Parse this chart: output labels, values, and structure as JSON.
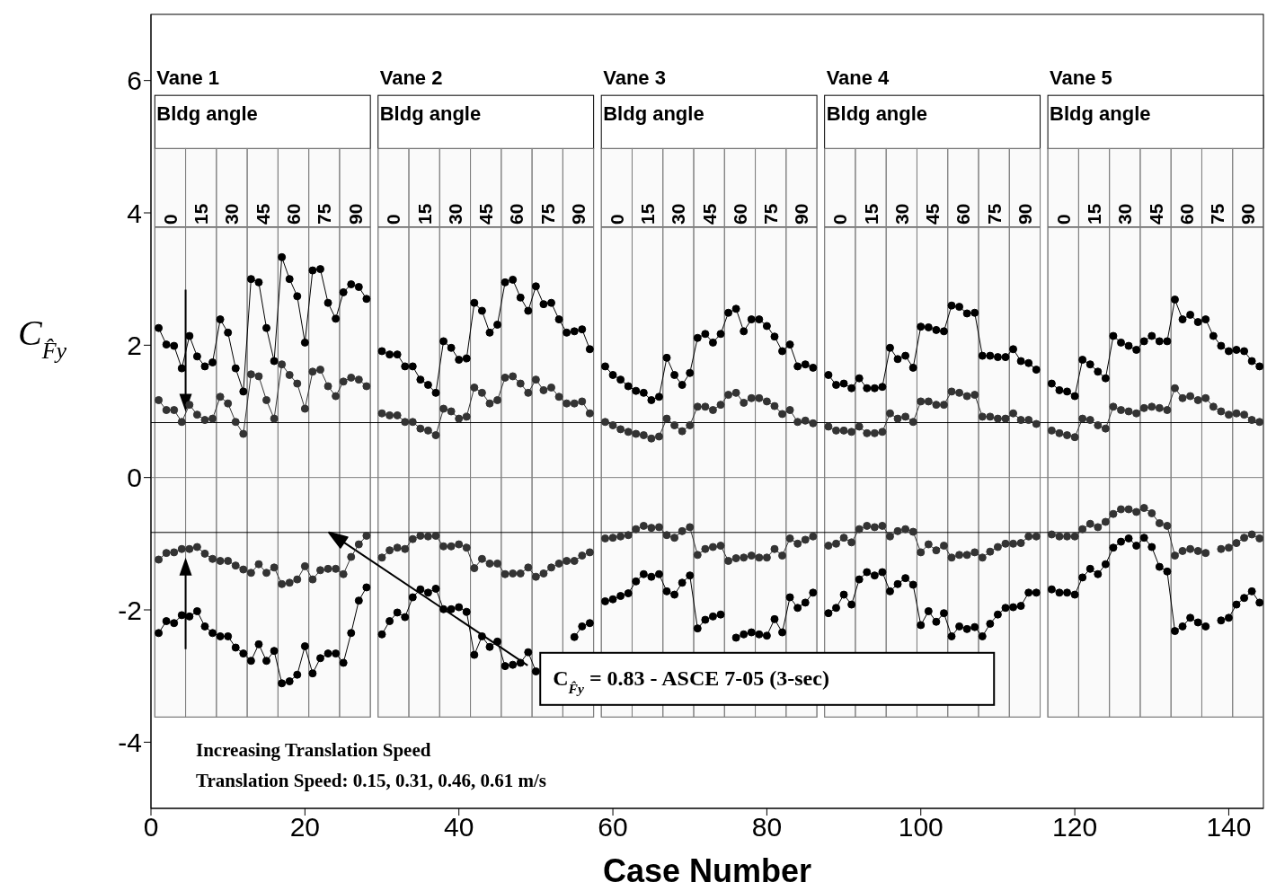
{
  "chart_data": {
    "type": "line",
    "xlabel": "Case Number",
    "ylabel": "C$_{F̂y}$",
    "x2label": "Bldg angle",
    "xlim": [
      0,
      144.5
    ],
    "xticks": [
      0,
      20,
      40,
      60,
      80,
      100,
      120,
      140
    ],
    "ylim": [
      -5,
      7
    ],
    "yticks": [
      -4,
      -2,
      0,
      2,
      4,
      6
    ],
    "bands": [
      {
        "axis": "x",
        "from": 0.5,
        "to": 28.5,
        "label": "Vane 1",
        "color": "#000000"
      },
      {
        "axis": "x",
        "from": 29.5,
        "to": 57.5,
        "label": "Vane 2",
        "color": "#000000"
      },
      {
        "axis": "x",
        "from": 58.5,
        "to": 86.5,
        "label": "Vane 3",
        "color": "#000000"
      },
      {
        "axis": "x",
        "from": 87.5,
        "to": 115.5,
        "label": "Vane 4",
        "color": "#000000"
      },
      {
        "axis": "x",
        "from": 116.5,
        "to": 144.5,
        "label": "Vane 5",
        "color": "#000000"
      },
      {
        "axis": "x",
        "from": 0.5,
        "to": 4.5,
        "label": "0",
        "color": "#808080"
      },
      {
        "axis": "x",
        "from": 4.5,
        "to": 8.5,
        "label": "15",
        "color": "#808080"
      },
      {
        "axis": "x",
        "from": 8.5,
        "to": 12.5,
        "label": "30",
        "color": "#808080"
      },
      {
        "axis": "x",
        "from": 12.5,
        "to": 16.5,
        "label": "45",
        "color": "#808080"
      },
      {
        "axis": "x",
        "from": 16.5,
        "to": 20.5,
        "label": "60",
        "color": "#808080"
      },
      {
        "axis": "x",
        "from": 20.5,
        "to": 24.5,
        "label": "75",
        "color": "#808080"
      },
      {
        "axis": "x",
        "from": 24.5,
        "to": 28.5,
        "label": "90",
        "color": "#808080"
      },
      {
        "axis": "x",
        "from": 29.5,
        "to": 33.5,
        "label": "0",
        "color": "#808080"
      },
      {
        "axis": "x",
        "from": 33.5,
        "to": 37.5,
        "label": "15",
        "color": "#808080"
      },
      {
        "axis": "x",
        "from": 37.5,
        "to": 41.5,
        "label": "30",
        "color": "#808080"
      },
      {
        "axis": "x",
        "from": 41.5,
        "to": 45.5,
        "label": "45",
        "color": "#808080"
      },
      {
        "axis": "x",
        "from": 45.5,
        "to": 49.5,
        "label": "60",
        "color": "#808080"
      },
      {
        "axis": "x",
        "from": 49.5,
        "to": 53.5,
        "label": "75",
        "color": "#808080"
      },
      {
        "axis": "x",
        "from": 53.5,
        "to": 57.5,
        "label": "90",
        "color": "#808080"
      },
      {
        "axis": "x",
        "from": 58.5,
        "to": 62.5,
        "label": "0",
        "color": "#808080"
      },
      {
        "axis": "x",
        "from": 62.5,
        "to": 66.5,
        "label": "15",
        "color": "#808080"
      },
      {
        "axis": "x",
        "from": 66.5,
        "to": 70.5,
        "label": "30",
        "color": "#808080"
      },
      {
        "axis": "x",
        "from": 70.5,
        "to": 74.5,
        "label": "45",
        "color": "#808080"
      },
      {
        "axis": "x",
        "from": 74.5,
        "to": 78.5,
        "label": "60",
        "color": "#808080"
      },
      {
        "axis": "x",
        "from": 78.5,
        "to": 82.5,
        "label": "75",
        "color": "#808080"
      },
      {
        "axis": "x",
        "from": 82.5,
        "to": 86.5,
        "label": "90",
        "color": "#808080"
      },
      {
        "axis": "x",
        "from": 87.5,
        "to": 91.5,
        "label": "0",
        "color": "#808080"
      },
      {
        "axis": "x",
        "from": 91.5,
        "to": 95.5,
        "label": "15",
        "color": "#808080"
      },
      {
        "axis": "x",
        "from": 95.5,
        "to": 99.5,
        "label": "30",
        "color": "#808080"
      },
      {
        "axis": "x",
        "from": 99.5,
        "to": 103.5,
        "label": "45",
        "color": "#808080"
      },
      {
        "axis": "x",
        "from": 103.5,
        "to": 107.5,
        "label": "60",
        "color": "#808080"
      },
      {
        "axis": "x",
        "from": 107.5,
        "to": 111.5,
        "label": "75",
        "color": "#808080"
      },
      {
        "axis": "x",
        "from": 111.5,
        "to": 115.5,
        "label": "90",
        "color": "#808080"
      },
      {
        "axis": "x",
        "from": 116.5,
        "to": 120.5,
        "label": "0",
        "color": "#808080"
      },
      {
        "axis": "x",
        "from": 120.5,
        "to": 124.5,
        "label": "15",
        "color": "#808080"
      },
      {
        "axis": "x",
        "from": 124.5,
        "to": 128.5,
        "label": "30",
        "color": "#808080"
      },
      {
        "axis": "x",
        "from": 128.5,
        "to": 132.5,
        "label": "45",
        "color": "#808080"
      },
      {
        "axis": "x",
        "from": 132.5,
        "to": 136.5,
        "label": "60",
        "color": "#808080"
      },
      {
        "axis": "x",
        "from": 136.5,
        "to": 140.5,
        "label": "75",
        "color": "#808080"
      },
      {
        "axis": "x",
        "from": 140.5,
        "to": 144.5,
        "label": "90",
        "color": "#808080"
      }
    ],
    "ref_lines": [
      {
        "axis": "y",
        "value": 0,
        "color": "#808080"
      },
      {
        "axis": "y",
        "value": 0.83,
        "color": "#000000"
      },
      {
        "axis": "y",
        "value": -0.83,
        "color": "#000000"
      }
    ],
    "annotations": [
      "C$_{F̂y}$ = 0.83 - ASCE 7-05 (3-sec)",
      "Increasing Translation Speed",
      "Translation Speed: 0.15, 0.31, 0.46, 0.61 m/s"
    ],
    "marker": "circle",
    "x": [
      1,
      2,
      3,
      4,
      5,
      6,
      7,
      8,
      9,
      10,
      11,
      12,
      13,
      14,
      15,
      16,
      17,
      18,
      19,
      20,
      21,
      22,
      23,
      24,
      25,
      26,
      27,
      28,
      29,
      30,
      31,
      32,
      33,
      34,
      35,
      36,
      37,
      38,
      39,
      40,
      41,
      42,
      43,
      44,
      45,
      46,
      47,
      48,
      49,
      50,
      51,
      52,
      53,
      54,
      55,
      56,
      57,
      58,
      59,
      60,
      61,
      62,
      63,
      64,
      65,
      66,
      67,
      68,
      69,
      70,
      71,
      72,
      73,
      74,
      75,
      76,
      77,
      78,
      79,
      80,
      81,
      82,
      83,
      84,
      85,
      86,
      87,
      88,
      89,
      90,
      91,
      92,
      93,
      94,
      95,
      96,
      97,
      98,
      99,
      100,
      101,
      102,
      103,
      104,
      105,
      106,
      107,
      108,
      109,
      110,
      111,
      112,
      113,
      114,
      115,
      116,
      117,
      118,
      119,
      120,
      121,
      122,
      123,
      124,
      125,
      126,
      127,
      128,
      129,
      130,
      131,
      132,
      133,
      134,
      135,
      136,
      137,
      138,
      139,
      140,
      141,
      142,
      143,
      144
    ],
    "series": [
      {
        "color": "#000000",
        "values": [
          2.26,
          2.01,
          1.99,
          1.65,
          2.14,
          1.83,
          1.68,
          1.74,
          2.39,
          2.19,
          1.65,
          1.3,
          3.0,
          2.95,
          2.26,
          1.76,
          3.33,
          3.0,
          2.74,
          2.04,
          3.13,
          3.15,
          2.64,
          2.4,
          2.8,
          2.92,
          2.88,
          2.7,
          null,
          1.91,
          1.86,
          1.86,
          1.68,
          1.68,
          1.48,
          1.4,
          1.28,
          2.06,
          1.96,
          1.78,
          1.8,
          2.64,
          2.52,
          2.19,
          2.31,
          2.95,
          2.99,
          2.72,
          2.52,
          2.89,
          2.62,
          2.64,
          2.39,
          2.19,
          2.21,
          2.24,
          1.94,
          null,
          1.68,
          1.55,
          1.48,
          1.38,
          1.31,
          1.28,
          1.17,
          1.22,
          1.81,
          1.55,
          1.4,
          1.58,
          2.11,
          2.17,
          2.04,
          2.17,
          2.49,
          2.55,
          2.21,
          2.39,
          2.39,
          2.29,
          2.13,
          1.91,
          2.01,
          1.68,
          1.71,
          1.66,
          null,
          1.55,
          1.4,
          1.42,
          1.35,
          1.5,
          1.35,
          1.35,
          1.37,
          1.96,
          1.79,
          1.84,
          1.66,
          2.28,
          2.27,
          2.23,
          2.21,
          2.6,
          2.58,
          2.48,
          2.49,
          1.84,
          1.84,
          1.82,
          1.82,
          1.94,
          1.76,
          1.73,
          1.63,
          null,
          1.42,
          1.32,
          1.3,
          1.23,
          1.78,
          1.71,
          1.6,
          1.5,
          2.14,
          2.04,
          1.99,
          1.93,
          2.06,
          2.14,
          2.06,
          2.06,
          2.69,
          2.39,
          2.46,
          2.35,
          2.39,
          2.14,
          1.99,
          1.91,
          1.93,
          1.91,
          1.76,
          1.68
        ]
      },
      {
        "color": "#333333",
        "values": [
          1.17,
          1.02,
          1.02,
          0.84,
          1.1,
          0.95,
          0.87,
          0.89,
          1.22,
          1.12,
          0.84,
          0.66,
          1.56,
          1.53,
          1.17,
          0.89,
          1.71,
          1.55,
          1.42,
          1.04,
          1.6,
          1.63,
          1.38,
          1.23,
          1.45,
          1.51,
          1.48,
          1.38,
          null,
          0.97,
          0.94,
          0.94,
          0.84,
          0.84,
          0.74,
          0.71,
          0.64,
          1.04,
          1.0,
          0.89,
          0.92,
          1.36,
          1.28,
          1.12,
          1.17,
          1.51,
          1.53,
          1.42,
          1.28,
          1.48,
          1.32,
          1.36,
          1.22,
          1.12,
          1.12,
          1.15,
          0.97,
          null,
          0.84,
          0.79,
          0.73,
          0.69,
          0.66,
          0.64,
          0.59,
          0.62,
          0.89,
          0.79,
          0.7,
          0.79,
          1.07,
          1.07,
          1.02,
          1.1,
          1.25,
          1.28,
          1.13,
          1.2,
          1.2,
          1.15,
          1.08,
          0.96,
          1.02,
          0.84,
          0.86,
          0.82,
          null,
          0.77,
          0.71,
          0.71,
          0.69,
          0.77,
          0.67,
          0.67,
          0.69,
          0.97,
          0.89,
          0.92,
          0.84,
          1.15,
          1.15,
          1.1,
          1.1,
          1.3,
          1.28,
          1.23,
          1.25,
          0.92,
          0.92,
          0.89,
          0.89,
          0.97,
          0.87,
          0.87,
          0.81,
          null,
          0.71,
          0.67,
          0.64,
          0.61,
          0.89,
          0.87,
          0.79,
          0.74,
          1.07,
          1.02,
          1.0,
          0.97,
          1.05,
          1.07,
          1.05,
          1.02,
          1.35,
          1.2,
          1.23,
          1.17,
          1.2,
          1.07,
          1.0,
          0.95,
          0.97,
          0.95,
          0.87,
          0.84
        ]
      },
      {
        "color": "#333333",
        "values": [
          -1.24,
          -1.14,
          -1.13,
          -1.08,
          -1.08,
          -1.05,
          -1.15,
          -1.23,
          -1.26,
          -1.26,
          -1.33,
          -1.39,
          -1.44,
          -1.31,
          -1.44,
          -1.36,
          -1.61,
          -1.59,
          -1.54,
          -1.34,
          -1.54,
          -1.4,
          -1.38,
          -1.38,
          -1.46,
          -1.2,
          -1.01,
          -0.88,
          null,
          -1.21,
          -1.1,
          -1.06,
          -1.08,
          -0.93,
          -0.88,
          -0.89,
          -0.88,
          -1.04,
          -1.04,
          -1.01,
          -1.06,
          -1.37,
          -1.23,
          -1.3,
          -1.3,
          -1.46,
          -1.45,
          -1.45,
          -1.36,
          -1.5,
          -1.45,
          -1.36,
          -1.3,
          -1.26,
          -1.26,
          -1.18,
          -1.13,
          null,
          -0.92,
          -0.91,
          -0.89,
          -0.87,
          -0.78,
          -0.73,
          -0.76,
          -0.75,
          -0.87,
          -0.91,
          -0.81,
          -0.75,
          -1.17,
          -1.08,
          -1.05,
          -1.03,
          -1.26,
          -1.22,
          -1.21,
          -1.18,
          -1.21,
          -1.21,
          -1.08,
          -1.18,
          -0.92,
          -1.0,
          -0.94,
          -0.89,
          null,
          -1.03,
          -1.0,
          -0.91,
          -0.98,
          -0.78,
          -0.73,
          -0.75,
          -0.73,
          -0.89,
          -0.81,
          -0.78,
          -0.82,
          -1.13,
          -1.01,
          -1.1,
          -1.03,
          -1.21,
          -1.17,
          -1.17,
          -1.13,
          -1.21,
          -1.12,
          -1.05,
          -1.0,
          -1.0,
          -0.99,
          -0.89,
          -0.89,
          null,
          -0.86,
          -0.89,
          -0.89,
          -0.89,
          -0.78,
          -0.7,
          -0.75,
          -0.67,
          -0.55,
          -0.48,
          -0.48,
          -0.52,
          -0.46,
          -0.54,
          -0.69,
          -0.73,
          -1.18,
          -1.11,
          -1.08,
          -1.11,
          -1.14,
          null,
          -1.08,
          -1.06,
          -0.99,
          -0.91,
          -0.86,
          -0.92
        ]
      },
      {
        "color": "#000000",
        "values": [
          -2.35,
          -2.17,
          -2.2,
          -2.08,
          -2.1,
          -2.02,
          -2.25,
          -2.35,
          -2.4,
          -2.4,
          -2.57,
          -2.66,
          -2.77,
          -2.52,
          -2.77,
          -2.62,
          -3.11,
          -3.08,
          -2.98,
          -2.55,
          -2.96,
          -2.73,
          -2.66,
          -2.66,
          -2.8,
          -2.35,
          -1.86,
          -1.66,
          null,
          -2.37,
          -2.17,
          -2.04,
          -2.11,
          -1.81,
          -1.69,
          -1.74,
          -1.68,
          -1.99,
          -1.99,
          -1.96,
          -2.03,
          -2.68,
          -2.4,
          -2.56,
          -2.48,
          -2.85,
          -2.83,
          -2.8,
          -2.64,
          -2.93,
          null,
          null,
          null,
          null,
          -2.41,
          -2.25,
          -2.2,
          null,
          -1.87,
          -1.84,
          -1.79,
          -1.75,
          -1.57,
          -1.46,
          -1.5,
          -1.46,
          -1.72,
          -1.77,
          -1.59,
          -1.48,
          -2.28,
          -2.15,
          -2.1,
          -2.07,
          null,
          -2.42,
          -2.37,
          -2.34,
          -2.37,
          -2.39,
          -2.14,
          -2.34,
          -1.81,
          -1.97,
          -1.89,
          -1.74,
          null,
          -2.05,
          -1.97,
          -1.77,
          -1.92,
          -1.54,
          -1.43,
          -1.48,
          -1.43,
          -1.72,
          -1.61,
          -1.52,
          -1.62,
          -2.23,
          -2.02,
          -2.18,
          -2.05,
          -2.4,
          -2.25,
          -2.29,
          -2.26,
          -2.4,
          -2.21,
          -2.07,
          -1.97,
          -1.96,
          -1.94,
          -1.74,
          -1.74,
          null,
          -1.69,
          -1.74,
          -1.74,
          -1.77,
          -1.51,
          -1.38,
          -1.46,
          -1.31,
          -1.06,
          -0.97,
          -0.92,
          -1.03,
          -0.91,
          -1.05,
          -1.35,
          -1.42,
          -2.32,
          -2.25,
          -2.12,
          -2.19,
          -2.25,
          null,
          -2.16,
          -2.12,
          -1.92,
          -1.82,
          -1.72,
          -1.89
        ]
      }
    ]
  }
}
